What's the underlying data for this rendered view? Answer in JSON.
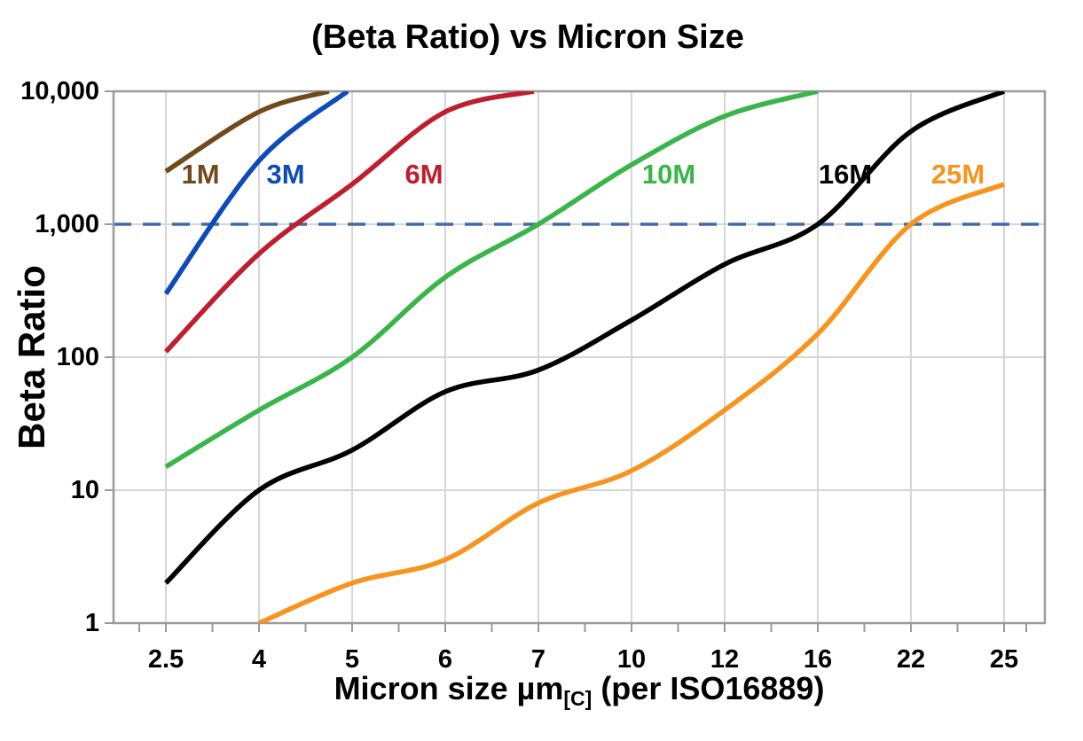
{
  "chart_data": {
    "type": "line",
    "title": "(Beta Ratio) vs Micron Size",
    "ylabel": "Beta Ratio",
    "xlabel_pre": "Micron size µm",
    "xlabel_sub": "[C]",
    "xlabel_post": " (per ISO16889)",
    "x_scale": "categorical",
    "y_scale": "log",
    "ylim": [
      1,
      10000
    ],
    "grid": true,
    "legend_position": "inline-labels",
    "categories": [
      "2.5",
      "4",
      "5",
      "6",
      "7",
      "10",
      "12",
      "16",
      "22",
      "25"
    ],
    "y_ticks": [
      "10,000",
      "1,000",
      "100",
      "10",
      "1"
    ],
    "reference_line": {
      "value": 1000,
      "color": "#3e6aad",
      "style": "dashed"
    },
    "series": [
      {
        "name": "1M",
        "color": "#70491c",
        "points": [
          [
            2.5,
            2500
          ],
          [
            4,
            7000
          ],
          [
            4.75,
            10000
          ]
        ]
      },
      {
        "name": "3M",
        "color": "#0d4bb8",
        "points": [
          [
            2.5,
            300
          ],
          [
            4,
            3000
          ],
          [
            4.95,
            10000
          ]
        ]
      },
      {
        "name": "6M",
        "color": "#be1e2d",
        "points": [
          [
            2.5,
            110
          ],
          [
            4,
            600
          ],
          [
            5,
            2000
          ],
          [
            6,
            7000
          ],
          [
            6.95,
            10000
          ]
        ]
      },
      {
        "name": "10M",
        "color": "#39b54a",
        "points": [
          [
            2.5,
            15
          ],
          [
            4,
            40
          ],
          [
            5,
            100
          ],
          [
            6,
            400
          ],
          [
            7,
            1000
          ],
          [
            10,
            2800
          ],
          [
            12,
            6500
          ],
          [
            16,
            10000
          ]
        ]
      },
      {
        "name": "16M",
        "color": "#000000",
        "points": [
          [
            2.5,
            2
          ],
          [
            4,
            10
          ],
          [
            5,
            20
          ],
          [
            6,
            55
          ],
          [
            7,
            80
          ],
          [
            10,
            190
          ],
          [
            12,
            500
          ],
          [
            16,
            1000
          ],
          [
            22,
            5000
          ],
          [
            25,
            10000
          ]
        ]
      },
      {
        "name": "25M",
        "color": "#f7941e",
        "points": [
          [
            4,
            1
          ],
          [
            5,
            2
          ],
          [
            6,
            3
          ],
          [
            7,
            8
          ],
          [
            10,
            14
          ],
          [
            12,
            40
          ],
          [
            16,
            150
          ],
          [
            22,
            1000
          ],
          [
            25,
            2000
          ]
        ]
      }
    ]
  },
  "colors": {
    "background": "#ffffff",
    "grid": "#d6d6d6",
    "frame": "#9a9a9a",
    "text": "#000000",
    "reference_dashed": "#3e6aad"
  }
}
